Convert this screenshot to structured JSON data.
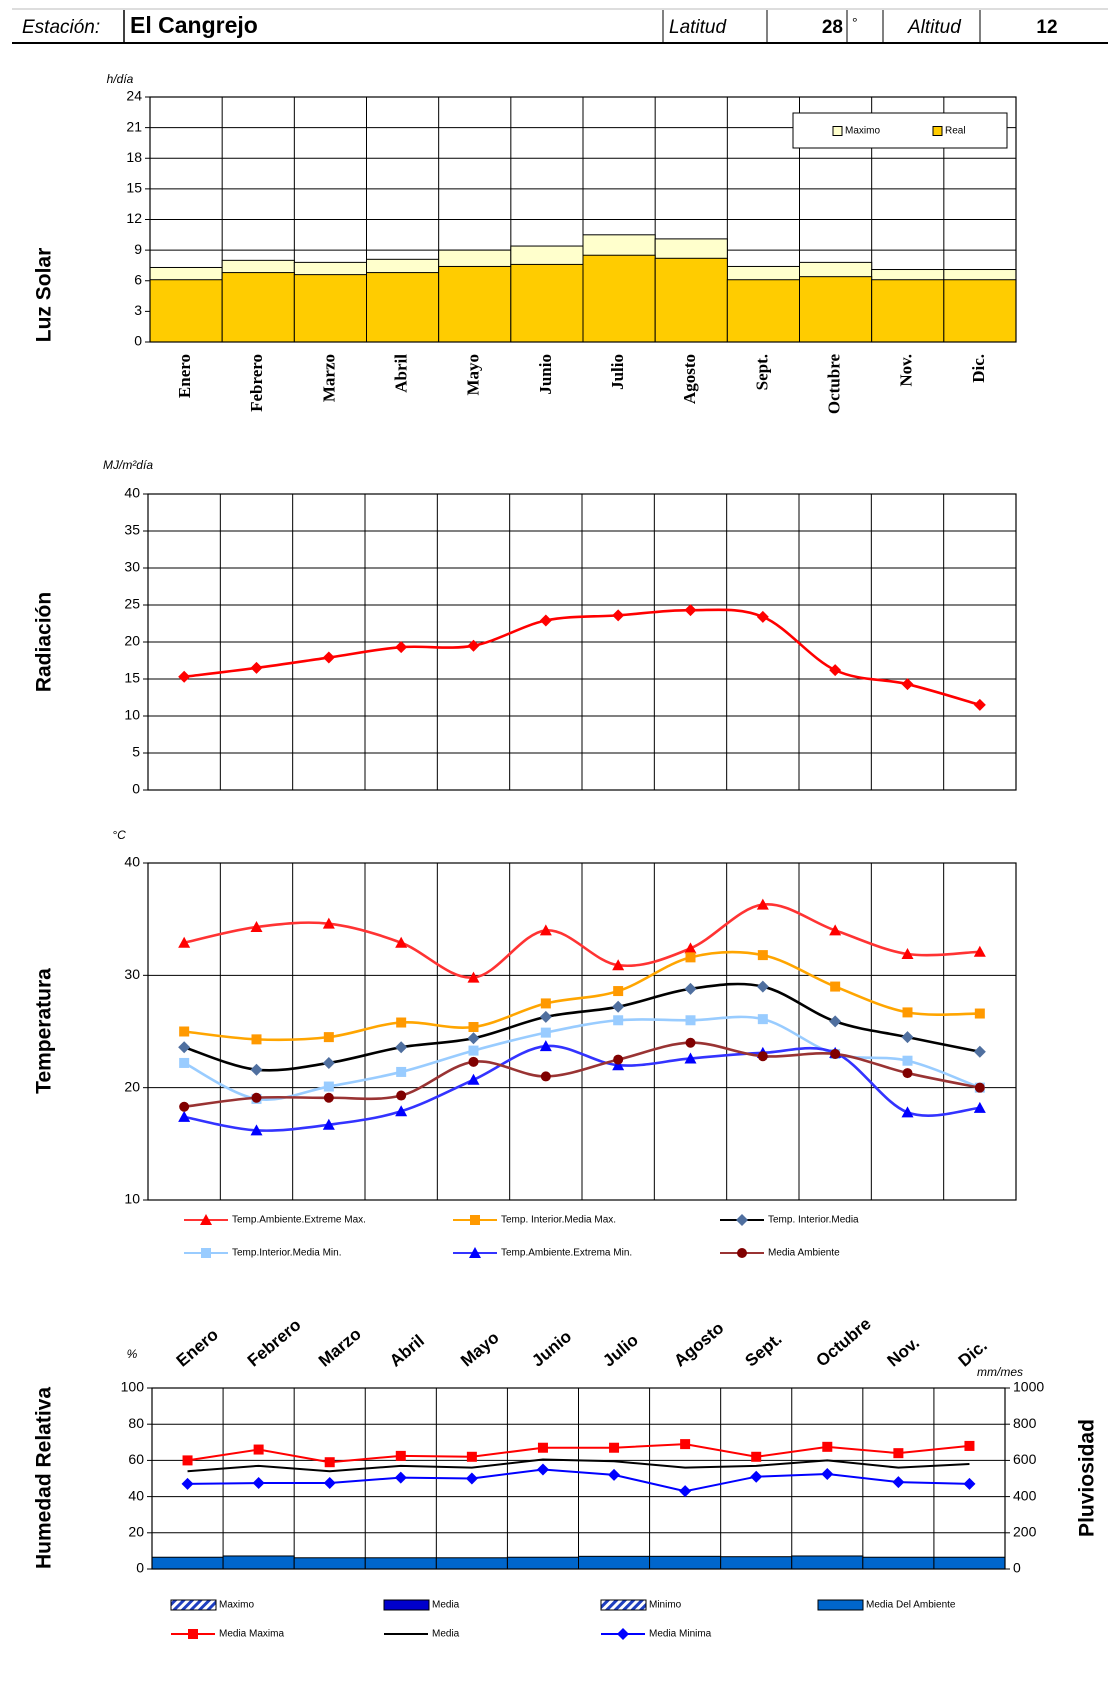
{
  "header": {
    "station_label": "Estación:",
    "station": "El Cangrejo",
    "latitude_label": "Latitud",
    "latitude": 28,
    "degree": "°",
    "altitude_label": "Altitud",
    "altitude": 12
  },
  "chart_data": [
    {
      "type": "bar",
      "ylabel": "Luz Solar",
      "yunit": "h/día",
      "categories": [
        "Enero",
        "Febrero",
        "Marzo",
        "Abril",
        "Mayo",
        "Junio",
        "Julio",
        "Agosto",
        "Sept.",
        "Octubre",
        "Nov.",
        "Dic."
      ],
      "bar_mode": "overlap",
      "series": [
        {
          "name": "Maximo",
          "color": "#ffffcc",
          "values": [
            7.3,
            8.0,
            7.8,
            8.1,
            9.0,
            9.4,
            10.5,
            10.1,
            7.4,
            7.8,
            7.1,
            7.1
          ]
        },
        {
          "name": "Real",
          "color": "#ffcc00",
          "values": [
            6.1,
            6.8,
            6.6,
            6.8,
            7.4,
            7.6,
            8.5,
            8.2,
            6.1,
            6.4,
            6.1,
            6.1
          ]
        }
      ],
      "ylim": [
        0,
        24
      ],
      "yticks": [
        0,
        3,
        6,
        9,
        12,
        15,
        18,
        21,
        24
      ],
      "grid": true
    },
    {
      "type": "line",
      "ylabel": "Radiación",
      "yunit": "MJ/m²día",
      "smooth": true,
      "series": [
        {
          "name": null,
          "color": "#ff0000",
          "marker": "diamond",
          "marker_color": "#ff0000",
          "values": [
            15.3,
            16.5,
            17.9,
            19.3,
            19.5,
            22.9,
            23.6,
            24.3,
            23.4,
            16.2,
            14.3,
            11.5
          ]
        }
      ],
      "ylim": [
        0,
        40
      ],
      "yticks": [
        0,
        5,
        10,
        15,
        20,
        25,
        30,
        35,
        40
      ],
      "grid": true
    },
    {
      "type": "line",
      "ylabel": "Temperatura",
      "yunit": "°C",
      "smooth": true,
      "series": [
        {
          "name": "Temp.Ambiente.Extreme Max.",
          "color": "#ff3333",
          "marker": "triangle",
          "marker_color": "#ff0000",
          "values": [
            32.9,
            34.3,
            34.6,
            32.9,
            29.8,
            34.0,
            30.9,
            32.4,
            36.3,
            34.0,
            31.9,
            32.1
          ]
        },
        {
          "name": "Temp. Interior.Media Max.",
          "color": "#ffa500",
          "marker": "square",
          "marker_color": "#ff9900",
          "values": [
            25.0,
            24.3,
            24.5,
            25.8,
            25.4,
            27.5,
            28.6,
            31.6,
            31.8,
            29.0,
            26.7,
            26.6
          ]
        },
        {
          "name": "Temp. Interior.Media",
          "color": "#000000",
          "marker": "diamond",
          "marker_color": "#4f6f9f",
          "values": [
            23.6,
            21.6,
            22.2,
            23.6,
            24.4,
            26.3,
            27.2,
            28.8,
            29.0,
            25.9,
            24.5,
            23.2
          ]
        },
        {
          "name": "Temp.Interior.Media Min.",
          "color": "#99ccff",
          "marker": "square",
          "marker_color": "#99ccff",
          "values": [
            22.2,
            19.0,
            20.1,
            21.4,
            23.3,
            24.9,
            26.0,
            26.0,
            26.1,
            23.0,
            22.4,
            20.0
          ]
        },
        {
          "name": "Temp.Ambiente.Extrema Min.",
          "color": "#3333ff",
          "marker": "triangle",
          "marker_color": "#0000ff",
          "values": [
            17.4,
            16.2,
            16.7,
            17.9,
            20.7,
            23.7,
            22.0,
            22.6,
            23.1,
            23.1,
            17.8,
            18.2
          ]
        },
        {
          "name": "Media Ambiente",
          "color": "#993333",
          "marker": "circle",
          "marker_color": "#800000",
          "values": [
            18.3,
            19.1,
            19.1,
            19.3,
            22.3,
            21.0,
            22.5,
            24.0,
            22.8,
            23.0,
            21.3,
            20.0
          ]
        }
      ],
      "ylim": [
        10,
        40
      ],
      "yticks": [
        10,
        20,
        30,
        40
      ],
      "grid": true
    },
    {
      "type": "combo",
      "ylabel": "Humedad Relativa",
      "yunit": "%",
      "y2label": "Pluviosidad",
      "y2unit": "mm/mes",
      "categories": [
        "Enero",
        "Febrero",
        "Marzo",
        "Abril",
        "Mayo",
        "Junio",
        "Julio",
        "Agosto",
        "Sept.",
        "Octubre",
        "Nov.",
        "Dic."
      ],
      "series": [
        {
          "name": "Maximo",
          "kind": "bar",
          "axis": "y2",
          "color": "#1f3fbf",
          "pattern": "hatch",
          "values": [
            null,
            null,
            null,
            null,
            null,
            null,
            null,
            null,
            null,
            null,
            null,
            null
          ]
        },
        {
          "name": "Media",
          "kind": "bar",
          "axis": "y2",
          "color": "#0000cc",
          "values": [
            null,
            null,
            null,
            null,
            null,
            null,
            null,
            null,
            null,
            null,
            null,
            null
          ]
        },
        {
          "name": "Minimo",
          "kind": "bar",
          "axis": "y2",
          "color": "#3333cc",
          "pattern": "hatch",
          "values": [
            null,
            null,
            null,
            null,
            null,
            null,
            null,
            null,
            null,
            null,
            null,
            null
          ]
        },
        {
          "name": "Media Del Ambiente",
          "kind": "bar",
          "axis": "y2",
          "color": "#0066cc",
          "values": [
            65,
            72,
            62,
            62,
            62,
            65,
            70,
            70,
            68,
            72,
            65,
            65
          ]
        },
        {
          "name": "Media Maxima",
          "kind": "line",
          "color": "#ff0000",
          "marker": "square",
          "marker_color": "#ff0000",
          "values": [
            60,
            66,
            59,
            62.5,
            62,
            67,
            67,
            69,
            62,
            67.5,
            64,
            68
          ]
        },
        {
          "name": "Media",
          "kind": "line",
          "color": "#000000",
          "values": [
            54,
            57,
            54,
            57,
            56,
            60.5,
            59.5,
            56,
            57,
            60,
            56,
            58
          ]
        },
        {
          "name": "Media Minima",
          "kind": "line",
          "color": "#0000ff",
          "marker": "diamond",
          "marker_color": "#0000ff",
          "values": [
            47,
            47.5,
            47.5,
            50.5,
            50,
            55,
            52,
            43,
            51,
            52.5,
            48,
            47
          ]
        }
      ],
      "ylim": [
        0,
        100
      ],
      "yticks": [
        0,
        20,
        40,
        60,
        80,
        100
      ],
      "y2lim": [
        0,
        1000
      ],
      "y2ticks": [
        0,
        200,
        400,
        600,
        800,
        1000
      ],
      "grid": true
    }
  ]
}
